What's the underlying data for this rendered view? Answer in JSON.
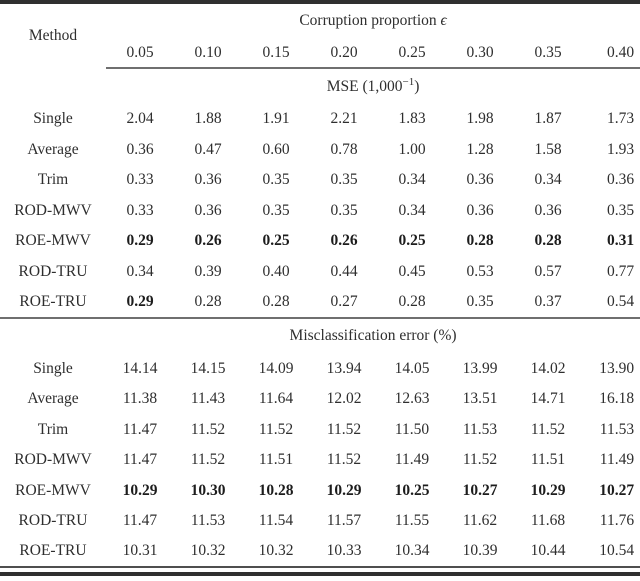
{
  "page": {
    "background": "#ffffff",
    "text_color": "#2e2e2e",
    "rule_heavy": "#2f2f2f",
    "rule_light": "#6f6f6f"
  },
  "table": {
    "method_header": "Method",
    "corruption_header": {
      "text": "Corruption proportion ",
      "symbol": "ϵ"
    },
    "epsilon_values": [
      "0.05",
      "0.10",
      "0.15",
      "0.20",
      "0.25",
      "0.30",
      "0.35",
      "0.40"
    ],
    "sections": [
      {
        "title": {
          "prefix": "MSE (1,000",
          "sup": "−1",
          "suffix": ")"
        },
        "rows": [
          {
            "method": "Single",
            "values": [
              "2.04",
              "1.88",
              "1.91",
              "2.21",
              "1.83",
              "1.98",
              "1.87",
              "1.73"
            ]
          },
          {
            "method": "Average",
            "values": [
              "0.36",
              "0.47",
              "0.60",
              "0.78",
              "1.00",
              "1.28",
              "1.58",
              "1.93"
            ]
          },
          {
            "method": "Trim",
            "values": [
              "0.33",
              "0.36",
              "0.35",
              "0.35",
              "0.34",
              "0.36",
              "0.34",
              "0.36"
            ]
          },
          {
            "method": "ROD-MWV",
            "values": [
              "0.33",
              "0.36",
              "0.35",
              "0.35",
              "0.34",
              "0.36",
              "0.36",
              "0.35"
            ]
          },
          {
            "method": "ROE-MWV",
            "values": [
              "0.29",
              "0.26",
              "0.25",
              "0.26",
              "0.25",
              "0.28",
              "0.28",
              "0.31"
            ],
            "bold": "all"
          },
          {
            "method": "ROD-TRU",
            "values": [
              "0.34",
              "0.39",
              "0.40",
              "0.44",
              "0.45",
              "0.53",
              "0.57",
              "0.77"
            ]
          },
          {
            "method": "ROE-TRU",
            "values": [
              "0.29",
              "0.28",
              "0.28",
              "0.27",
              "0.28",
              "0.35",
              "0.37",
              "0.54"
            ],
            "bold": "first"
          }
        ]
      },
      {
        "title": {
          "prefix": "Misclassification error (%)",
          "sup": "",
          "suffix": ""
        },
        "rows": [
          {
            "method": "Single",
            "values": [
              "14.14",
              "14.15",
              "14.09",
              "13.94",
              "14.05",
              "13.99",
              "14.02",
              "13.90"
            ]
          },
          {
            "method": "Average",
            "values": [
              "11.38",
              "11.43",
              "11.64",
              "12.02",
              "12.63",
              "13.51",
              "14.71",
              "16.18"
            ]
          },
          {
            "method": "Trim",
            "values": [
              "11.47",
              "11.52",
              "11.52",
              "11.52",
              "11.50",
              "11.53",
              "11.52",
              "11.53"
            ]
          },
          {
            "method": "ROD-MWV",
            "values": [
              "11.47",
              "11.52",
              "11.51",
              "11.52",
              "11.49",
              "11.52",
              "11.51",
              "11.49"
            ]
          },
          {
            "method": "ROE-MWV",
            "values": [
              "10.29",
              "10.30",
              "10.28",
              "10.29",
              "10.25",
              "10.27",
              "10.29",
              "10.27"
            ],
            "bold": "all"
          },
          {
            "method": "ROD-TRU",
            "values": [
              "11.47",
              "11.53",
              "11.54",
              "11.57",
              "11.55",
              "11.62",
              "11.68",
              "11.76"
            ]
          },
          {
            "method": "ROE-TRU",
            "values": [
              "10.31",
              "10.32",
              "10.32",
              "10.33",
              "10.34",
              "10.39",
              "10.44",
              "10.54"
            ]
          }
        ]
      }
    ]
  }
}
